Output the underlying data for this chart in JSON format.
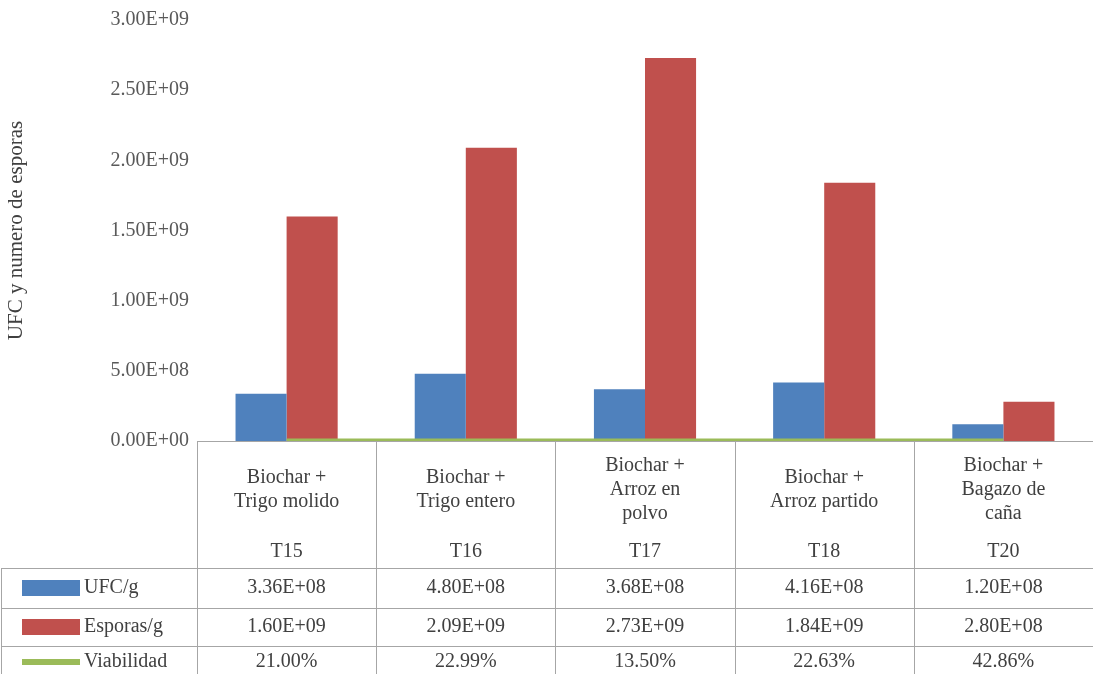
{
  "chart_data": {
    "type": "bar",
    "ylabel": "UFC y numero de esporas",
    "categories": [
      "Biochar + Trigo molido",
      "Biochar + Trigo entero",
      "Biochar + Arroz en polvo",
      "Biochar + Arroz partido",
      "Biochar + Bagazo de caña"
    ],
    "series": [
      {
        "name": "UFC/g",
        "color": "#4f81bd",
        "values": [
          336000000,
          480000000,
          368000000,
          416000000,
          120000000
        ],
        "value_labels": [
          "3.36E+08",
          "4.80E+08",
          "3.68E+08",
          "4.16E+08",
          "1.20E+08"
        ]
      },
      {
        "name": "Esporas/g",
        "color": "#c0504d",
        "values": [
          1600000000,
          2090000000,
          2730000000,
          1840000000,
          280000000
        ],
        "value_labels": [
          "1.60E+09",
          "2.09E+09",
          "2.73E+09",
          "1.84E+09",
          "2.80E+08"
        ]
      },
      {
        "name": "Viabilidad",
        "type": "line",
        "color": "#9bbb59",
        "values": [
          0.21,
          0.2299,
          0.135,
          0.2263,
          0.4286
        ],
        "value_labels": [
          "21.00%",
          "22.99%",
          "13.50%",
          "22.63%",
          "42.86%"
        ]
      }
    ],
    "annotations": [
      "T15",
      "T16",
      "T17",
      "T18",
      "T20"
    ],
    "ylim": [
      0,
      3000000000
    ],
    "yticks": [
      {
        "value": 0,
        "label": "0.00E+00"
      },
      {
        "value": 500000000,
        "label": "5.00E+08"
      },
      {
        "value": 1000000000,
        "label": "1.00E+09"
      },
      {
        "value": 1500000000,
        "label": "1.50E+09"
      },
      {
        "value": 2000000000,
        "label": "2.00E+09"
      },
      {
        "value": 2500000000,
        "label": "2.50E+09"
      },
      {
        "value": 3000000000,
        "label": "3.00E+09"
      }
    ],
    "grid": false,
    "legend": "bottom",
    "marker": "none"
  }
}
